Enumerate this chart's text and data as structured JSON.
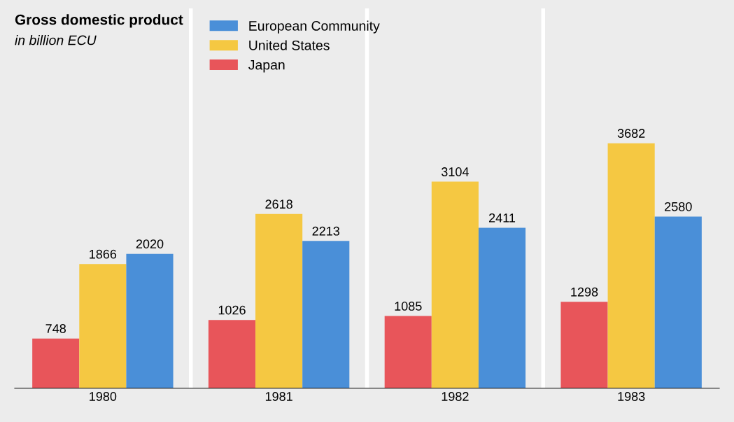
{
  "chart_data": {
    "type": "bar",
    "title": "Gross domestic product",
    "subtitle": "in billion ECU",
    "categories": [
      "1980",
      "1981",
      "1982",
      "1983"
    ],
    "series": [
      {
        "name": "Japan",
        "color": "#e8555a",
        "values": [
          748,
          1026,
          1085,
          1298
        ]
      },
      {
        "name": "United States",
        "color": "#f5c842",
        "values": [
          1866,
          2618,
          3104,
          3682
        ]
      },
      {
        "name": "European Community",
        "color": "#4a8fd8",
        "values": [
          2020,
          2213,
          2411,
          2580
        ]
      }
    ],
    "data_labels": true,
    "legend": "top left",
    "grid": false
  }
}
